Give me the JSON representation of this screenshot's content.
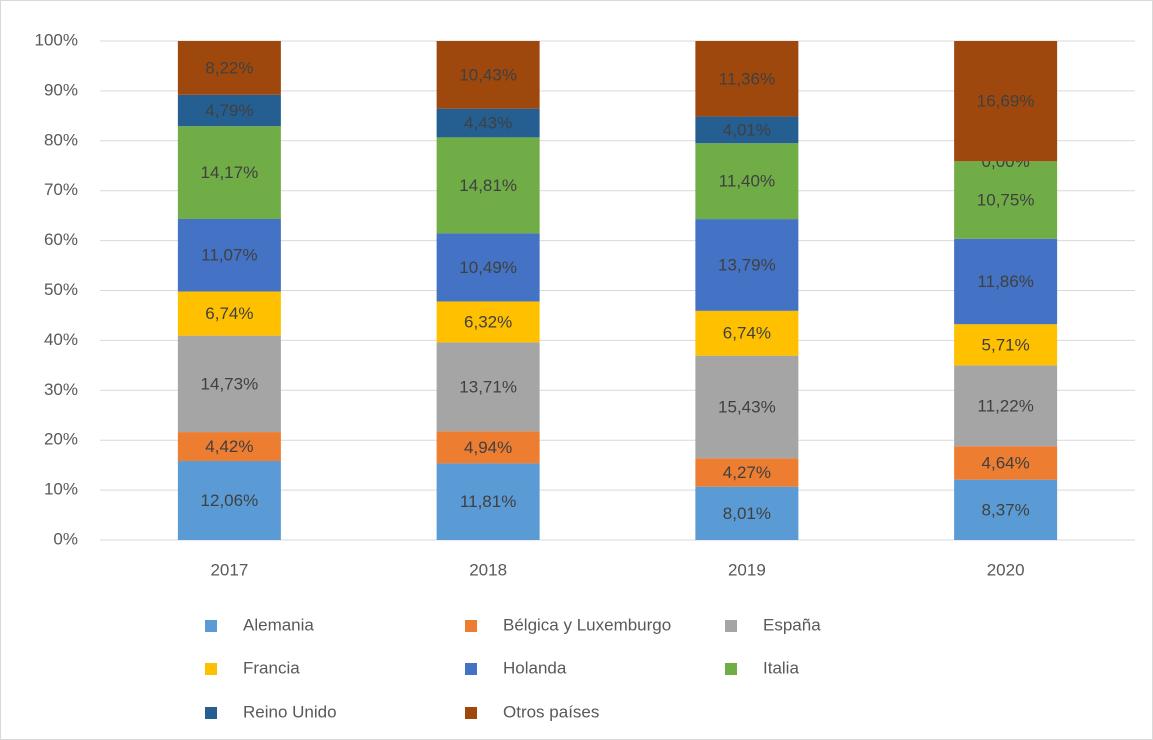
{
  "chart_data": {
    "type": "bar",
    "stacked": "percent",
    "categories": [
      "2017",
      "2018",
      "2019",
      "2020"
    ],
    "ylim": [
      0,
      100
    ],
    "yticks": [
      {
        "value": 0,
        "label": "0%"
      },
      {
        "value": 10,
        "label": "10%"
      },
      {
        "value": 20,
        "label": "20%"
      },
      {
        "value": 30,
        "label": "30%"
      },
      {
        "value": 40,
        "label": "40%"
      },
      {
        "value": 50,
        "label": "50%"
      },
      {
        "value": 60,
        "label": "60%"
      },
      {
        "value": 70,
        "label": "70%"
      },
      {
        "value": 80,
        "label": "80%"
      },
      {
        "value": 90,
        "label": "90%"
      },
      {
        "value": 100,
        "label": "100%"
      }
    ],
    "grid": true,
    "legend": "bottom",
    "series": [
      {
        "name": "Alemania",
        "color": "#5b9bd5",
        "values": [
          12.06,
          11.81,
          8.01,
          8.37
        ],
        "value_labels": [
          "12,06%",
          "11,81%",
          "8,01%",
          "8,37%"
        ]
      },
      {
        "name": "Bélgica y Luxemburgo",
        "color": "#ed7d31",
        "values": [
          4.42,
          4.94,
          4.27,
          4.64
        ],
        "value_labels": [
          "4,42%",
          "4,94%",
          "4,27%",
          "4,64%"
        ]
      },
      {
        "name": "España",
        "color": "#a5a5a5",
        "values": [
          14.73,
          13.71,
          15.43,
          11.22
        ],
        "value_labels": [
          "14,73%",
          "13,71%",
          "15,43%",
          "11,22%"
        ]
      },
      {
        "name": "Francia",
        "color": "#ffc000",
        "values": [
          6.74,
          6.32,
          6.74,
          5.71
        ],
        "value_labels": [
          "6,74%",
          "6,32%",
          "6,74%",
          "5,71%"
        ]
      },
      {
        "name": "Holanda",
        "color": "#4472c4",
        "values": [
          11.07,
          10.49,
          13.79,
          11.86
        ],
        "value_labels": [
          "11,07%",
          "10,49%",
          "13,79%",
          "11,86%"
        ]
      },
      {
        "name": "Italia",
        "color": "#70ad47",
        "values": [
          14.17,
          14.81,
          11.4,
          10.75
        ],
        "value_labels": [
          "14,17%",
          "14,81%",
          "11,40%",
          "10,75%"
        ]
      },
      {
        "name": "Reino Unido",
        "color": "#255e91",
        "values": [
          4.79,
          4.43,
          4.01,
          0.0
        ],
        "value_labels": [
          "4,79%",
          "4,43%",
          "4,01%",
          "0,00%"
        ]
      },
      {
        "name": "Otros países",
        "color": "#9e480e",
        "values": [
          8.22,
          10.43,
          11.36,
          16.69
        ],
        "value_labels": [
          "8,22%",
          "10,43%",
          "11,36%",
          "16,69%"
        ]
      }
    ]
  }
}
